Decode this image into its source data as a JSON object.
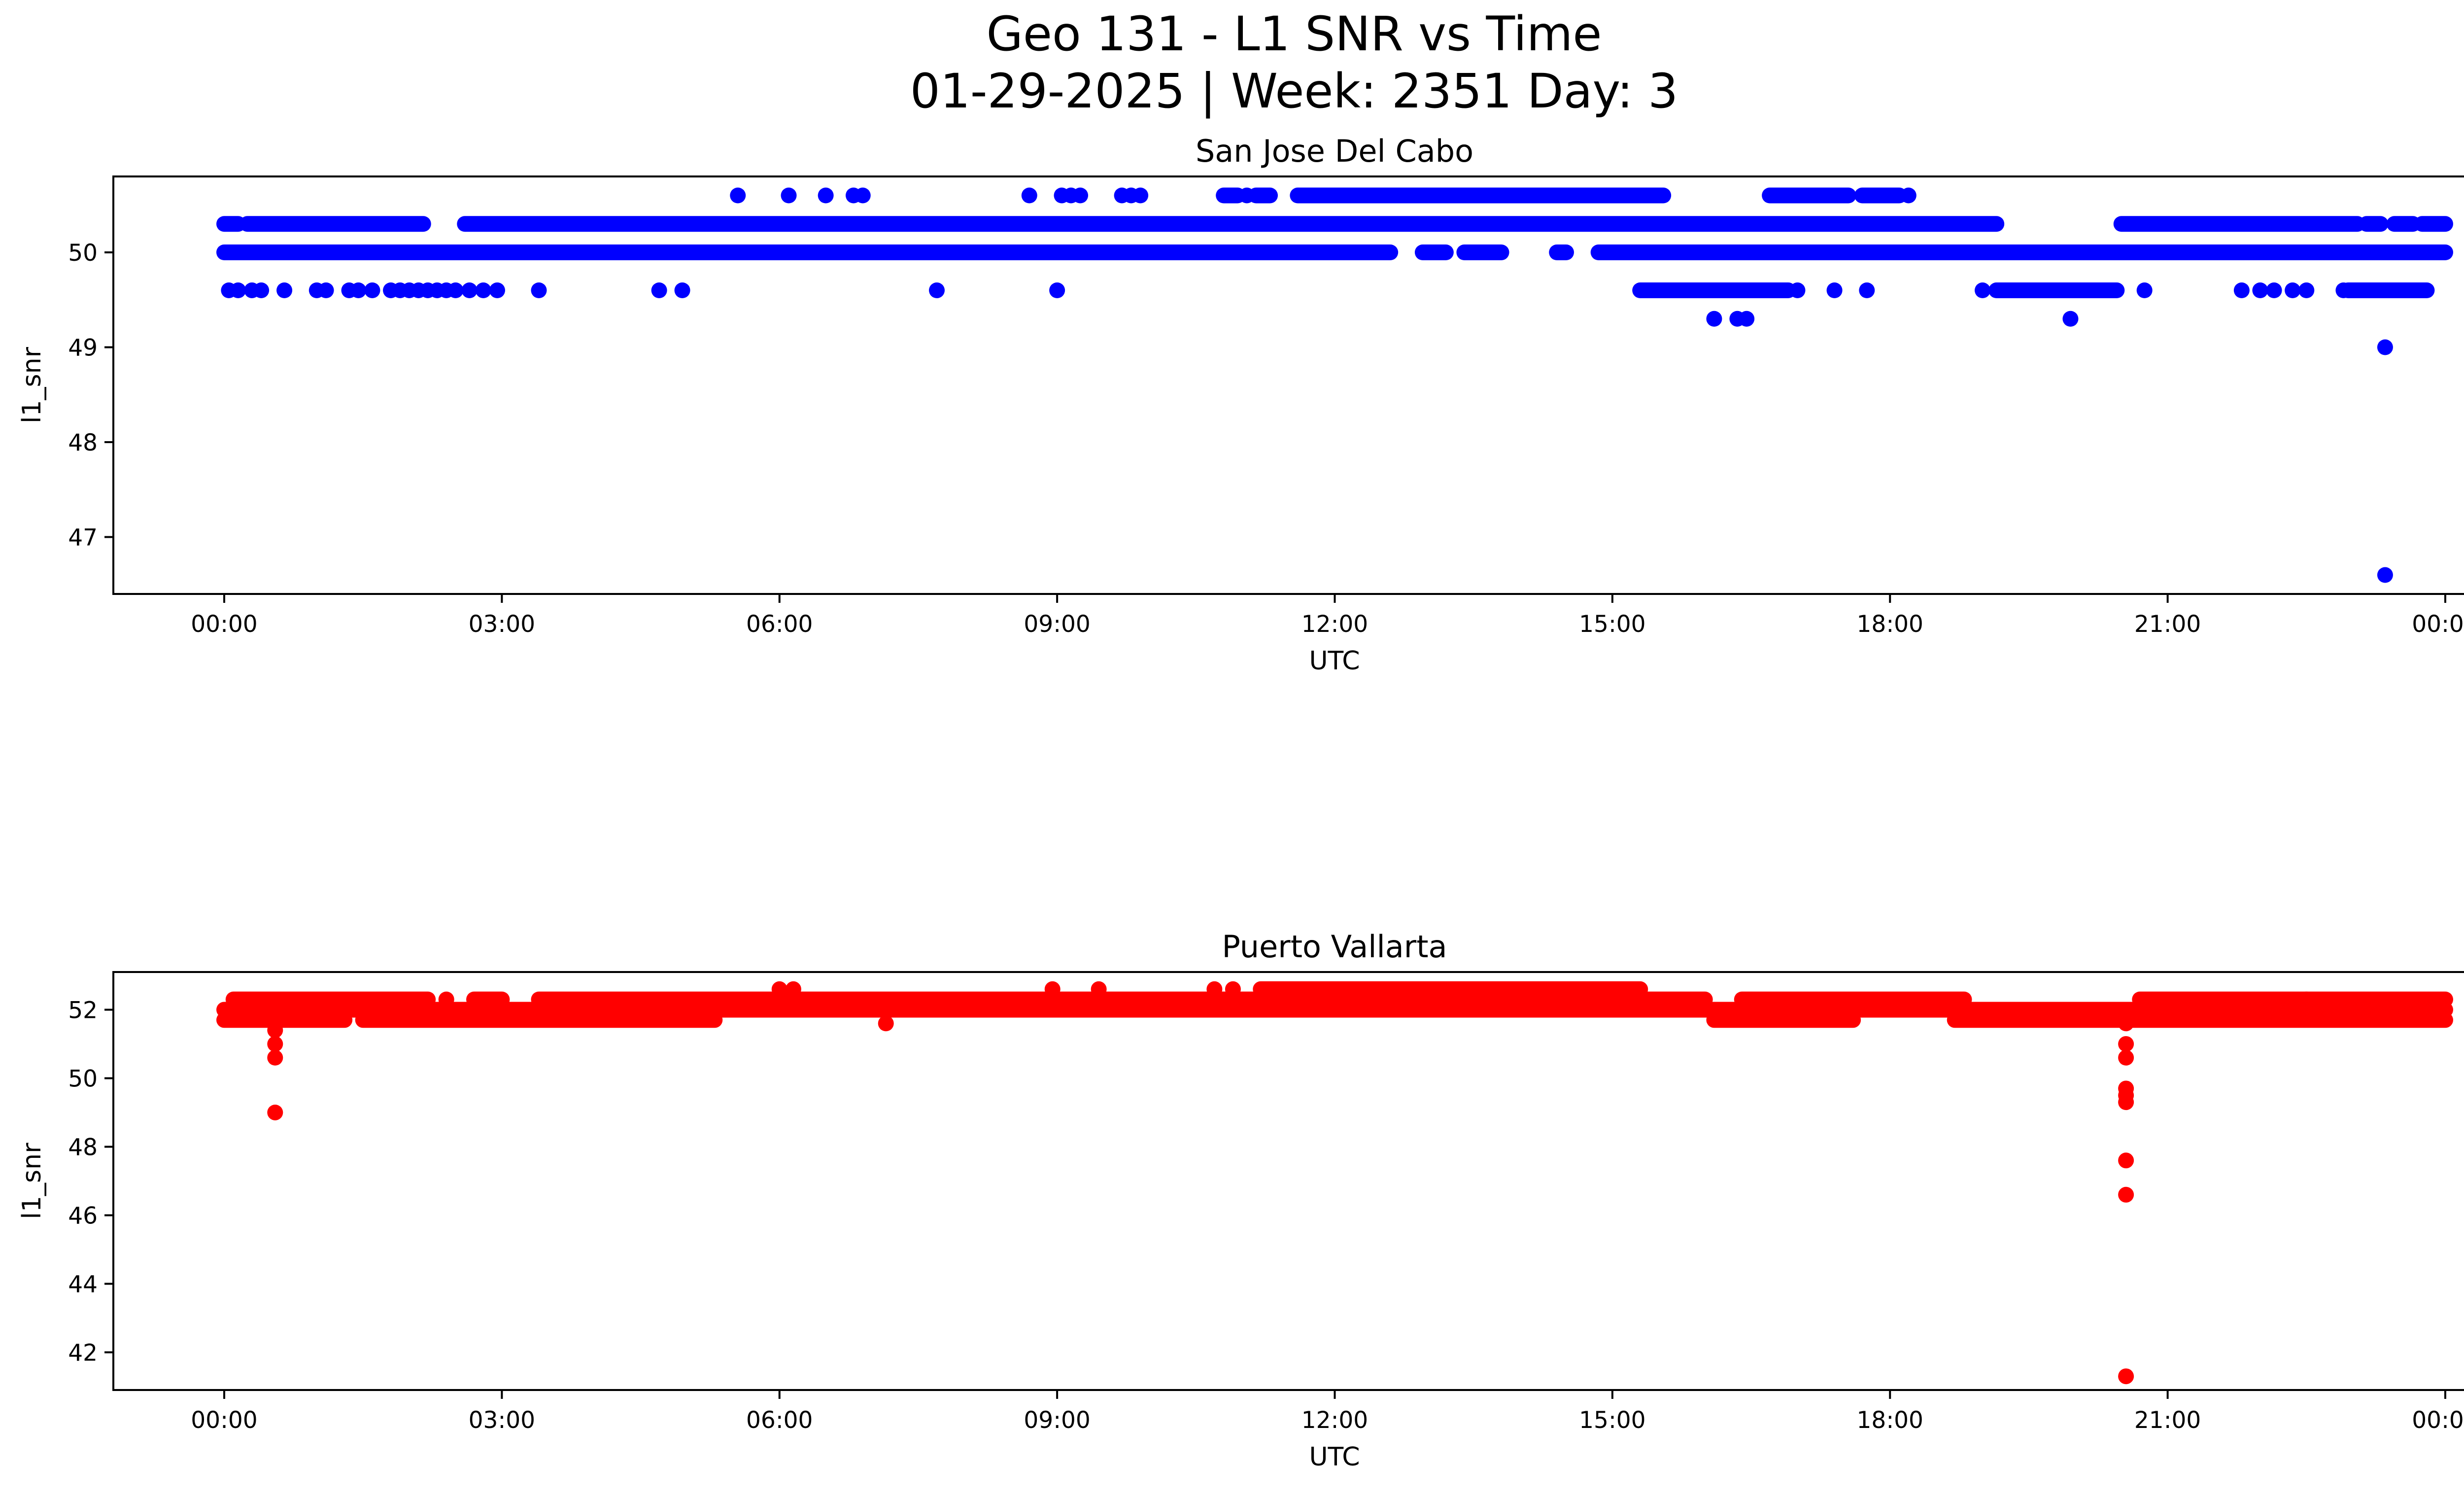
{
  "figure": {
    "title_line1": "Geo 131 - L1 SNR vs Time",
    "title_line2": "01-29-2025 | Week: 2351 Day: 3"
  },
  "chart_data": [
    {
      "type": "scatter",
      "title": "San Jose Del Cabo",
      "xlabel": "UTC",
      "ylabel": "l1_snr",
      "color": "#0000ff",
      "x_unit": "hours UTC",
      "xlim": [
        "23:00 (previous day)",
        "00:15 (next day)"
      ],
      "ylim": [
        46.4,
        50.8
      ],
      "xticks": [
        "00:00",
        "03:00",
        "06:00",
        "09:00",
        "12:00",
        "15:00",
        "18:00",
        "21:00",
        "00:00"
      ],
      "yticks": [
        47,
        48,
        49,
        50
      ],
      "levels": [
        {
          "y": 50.0,
          "ranges": [
            [
              0.0,
              12.6
            ],
            [
              12.95,
              13.2
            ],
            [
              13.4,
              13.8
            ],
            [
              14.4,
              14.5
            ],
            [
              14.85,
              24.0
            ]
          ]
        },
        {
          "y": 50.3,
          "ranges": [
            [
              0.0,
              0.15
            ],
            [
              0.25,
              2.15
            ],
            [
              2.6,
              19.15
            ],
            [
              20.5,
              23.05
            ],
            [
              23.15,
              23.3
            ],
            [
              23.45,
              23.65
            ],
            [
              23.75,
              24.0
            ]
          ]
        },
        {
          "y": 49.6,
          "ranges": [
            [
              15.3,
              16.9
            ],
            [
              19.15,
              20.45
            ],
            [
              22.95,
              23.8
            ]
          ]
        },
        {
          "y": 50.6,
          "ranges": [
            [
              10.8,
              10.95
            ],
            [
              11.15,
              11.3
            ],
            [
              11.6,
              15.55
            ],
            [
              16.7,
              17.55
            ],
            [
              17.7,
              18.1
            ]
          ]
        }
      ],
      "points": [
        {
          "x": 0.05,
          "y": 49.6
        },
        {
          "x": 0.15,
          "y": 49.6
        },
        {
          "x": 0.3,
          "y": 49.6
        },
        {
          "x": 0.4,
          "y": 49.6
        },
        {
          "x": 0.65,
          "y": 49.6
        },
        {
          "x": 1.0,
          "y": 49.6
        },
        {
          "x": 1.1,
          "y": 49.6
        },
        {
          "x": 1.35,
          "y": 49.6
        },
        {
          "x": 1.45,
          "y": 49.6
        },
        {
          "x": 1.6,
          "y": 49.6
        },
        {
          "x": 1.8,
          "y": 49.6
        },
        {
          "x": 1.9,
          "y": 49.6
        },
        {
          "x": 2.0,
          "y": 49.6
        },
        {
          "x": 2.1,
          "y": 49.6
        },
        {
          "x": 2.2,
          "y": 49.6
        },
        {
          "x": 2.3,
          "y": 49.6
        },
        {
          "x": 2.4,
          "y": 49.6
        },
        {
          "x": 2.5,
          "y": 49.6
        },
        {
          "x": 2.65,
          "y": 49.6
        },
        {
          "x": 2.8,
          "y": 49.6
        },
        {
          "x": 2.95,
          "y": 49.6
        },
        {
          "x": 3.4,
          "y": 49.6
        },
        {
          "x": 4.7,
          "y": 49.6
        },
        {
          "x": 4.95,
          "y": 49.6
        },
        {
          "x": 7.7,
          "y": 49.6
        },
        {
          "x": 9.0,
          "y": 49.6
        },
        {
          "x": 17.0,
          "y": 49.6
        },
        {
          "x": 17.4,
          "y": 49.6
        },
        {
          "x": 17.75,
          "y": 49.6
        },
        {
          "x": 19.0,
          "y": 49.6
        },
        {
          "x": 20.75,
          "y": 49.6
        },
        {
          "x": 21.8,
          "y": 49.6
        },
        {
          "x": 22.0,
          "y": 49.6
        },
        {
          "x": 22.15,
          "y": 49.6
        },
        {
          "x": 22.35,
          "y": 49.6
        },
        {
          "x": 22.5,
          "y": 49.6
        },
        {
          "x": 22.9,
          "y": 49.6
        },
        {
          "x": 5.55,
          "y": 50.6
        },
        {
          "x": 6.1,
          "y": 50.6
        },
        {
          "x": 6.5,
          "y": 50.6
        },
        {
          "x": 6.8,
          "y": 50.6
        },
        {
          "x": 6.9,
          "y": 50.6
        },
        {
          "x": 8.7,
          "y": 50.6
        },
        {
          "x": 9.05,
          "y": 50.6
        },
        {
          "x": 9.15,
          "y": 50.6
        },
        {
          "x": 9.25,
          "y": 50.6
        },
        {
          "x": 9.7,
          "y": 50.6
        },
        {
          "x": 9.8,
          "y": 50.6
        },
        {
          "x": 9.9,
          "y": 50.6
        },
        {
          "x": 11.05,
          "y": 50.6
        },
        {
          "x": 18.2,
          "y": 50.6
        },
        {
          "x": 16.1,
          "y": 49.3
        },
        {
          "x": 16.35,
          "y": 49.3
        },
        {
          "x": 16.45,
          "y": 49.3
        },
        {
          "x": 19.95,
          "y": 49.3
        },
        {
          "x": 23.35,
          "y": 49.0
        },
        {
          "x": 23.35,
          "y": 46.6
        }
      ]
    },
    {
      "type": "scatter",
      "title": "Puerto Vallarta",
      "xlabel": "UTC",
      "ylabel": "l1_snr",
      "color": "#ff0000",
      "x_unit": "hours UTC",
      "xlim": [
        "23:00 (previous day)",
        "00:15 (next day)"
      ],
      "ylim": [
        40.9,
        53.1
      ],
      "xticks": [
        "00:00",
        "03:00",
        "06:00",
        "09:00",
        "12:00",
        "15:00",
        "18:00",
        "21:00",
        "00:00"
      ],
      "yticks": [
        42,
        44,
        46,
        48,
        50,
        52
      ],
      "levels": [
        {
          "y": 52.0,
          "ranges": [
            [
              0.0,
              24.0
            ]
          ]
        },
        {
          "y": 52.3,
          "ranges": [
            [
              0.1,
              2.2
            ],
            [
              2.7,
              3.0
            ],
            [
              3.4,
              16.0
            ],
            [
              16.4,
              18.8
            ],
            [
              20.7,
              24.0
            ]
          ]
        },
        {
          "y": 51.7,
          "ranges": [
            [
              0.0,
              1.3
            ],
            [
              1.5,
              5.3
            ],
            [
              16.1,
              17.6
            ],
            [
              18.7,
              24.0
            ]
          ]
        },
        {
          "y": 52.6,
          "ranges": [
            [
              11.2,
              15.3
            ]
          ]
        }
      ],
      "points": [
        {
          "x": 0.55,
          "y": 51.4
        },
        {
          "x": 0.55,
          "y": 51.0
        },
        {
          "x": 0.55,
          "y": 50.6
        },
        {
          "x": 0.55,
          "y": 49.0
        },
        {
          "x": 2.4,
          "y": 52.3
        },
        {
          "x": 6.0,
          "y": 52.6
        },
        {
          "x": 6.15,
          "y": 52.6
        },
        {
          "x": 7.15,
          "y": 51.6
        },
        {
          "x": 8.95,
          "y": 52.6
        },
        {
          "x": 9.45,
          "y": 52.6
        },
        {
          "x": 10.7,
          "y": 52.6
        },
        {
          "x": 10.9,
          "y": 52.6
        },
        {
          "x": 13.3,
          "y": 52.0
        },
        {
          "x": 14.3,
          "y": 52.0
        },
        {
          "x": 14.7,
          "y": 52.0
        },
        {
          "x": 22.5,
          "y": 52.3
        },
        {
          "x": 20.55,
          "y": 51.6
        },
        {
          "x": 20.55,
          "y": 51.0
        },
        {
          "x": 20.55,
          "y": 50.6
        },
        {
          "x": 20.55,
          "y": 49.7
        },
        {
          "x": 20.55,
          "y": 49.5
        },
        {
          "x": 20.55,
          "y": 49.3
        },
        {
          "x": 20.55,
          "y": 47.6
        },
        {
          "x": 20.55,
          "y": 46.6
        },
        {
          "x": 20.55,
          "y": 41.3
        }
      ]
    }
  ]
}
